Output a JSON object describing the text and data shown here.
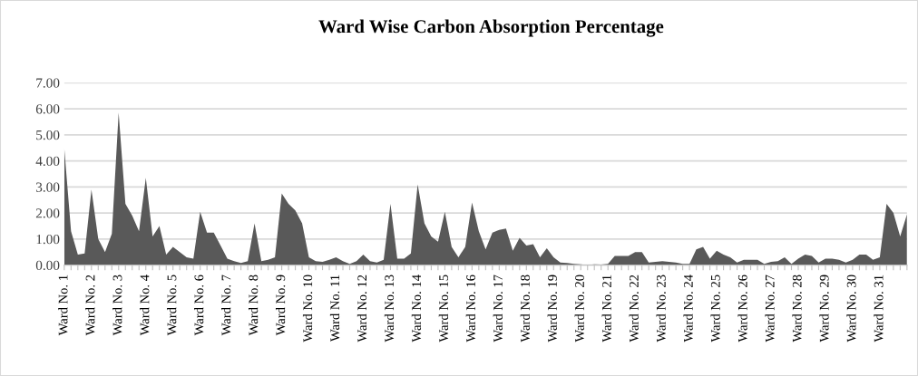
{
  "chart_data": {
    "type": "area",
    "title": "Ward Wise Carbon Absorption Percentage",
    "categories": [
      "Ward No. 1",
      null,
      null,
      null,
      "Ward No. 2",
      null,
      null,
      null,
      "Ward No. 3",
      null,
      null,
      null,
      "Ward No. 4",
      null,
      null,
      null,
      "Ward No. 5",
      null,
      null,
      null,
      "Ward No. 6",
      null,
      null,
      null,
      "Ward No. 7",
      null,
      null,
      null,
      "Ward No. 8",
      null,
      null,
      null,
      "Ward No. 9",
      null,
      null,
      null,
      "Ward No. 10",
      null,
      null,
      null,
      "Ward No. 11",
      null,
      null,
      null,
      "Ward No. 12",
      null,
      null,
      null,
      "Ward No. 13",
      null,
      null,
      null,
      "Ward No. 14",
      null,
      null,
      null,
      "Ward No. 15",
      null,
      null,
      null,
      "Ward No. 16",
      null,
      null,
      null,
      "Ward No. 17",
      null,
      null,
      null,
      "Ward No. 18",
      null,
      null,
      null,
      "Ward No. 19",
      null,
      null,
      null,
      "Ward No. 20",
      null,
      null,
      null,
      "Ward No. 21",
      null,
      null,
      null,
      "Ward No. 22",
      null,
      null,
      null,
      "Ward No. 23",
      null,
      null,
      null,
      "Ward No. 24",
      null,
      null,
      null,
      "Ward No. 25",
      null,
      null,
      null,
      "Ward No. 26",
      null,
      null,
      null,
      "Ward No. 27",
      null,
      null,
      null,
      "Ward No. 28",
      null,
      null,
      null,
      "Ward No. 29",
      null,
      null,
      null,
      "Ward No. 30",
      null,
      null,
      null,
      "Ward No. 31",
      null,
      null,
      null,
      null
    ],
    "series": [
      {
        "color": "#595959",
        "values": [
          4.5,
          1.3,
          0.4,
          0.45,
          2.9,
          1.0,
          0.5,
          1.2,
          5.85,
          2.35,
          1.9,
          1.3,
          3.35,
          1.1,
          1.5,
          0.4,
          0.7,
          0.5,
          0.3,
          0.25,
          2.05,
          1.25,
          1.25,
          0.75,
          0.25,
          0.15,
          0.08,
          0.15,
          1.6,
          0.15,
          0.2,
          0.3,
          2.75,
          2.35,
          2.1,
          1.6,
          0.3,
          0.15,
          0.12,
          0.2,
          0.3,
          0.15,
          0.05,
          0.15,
          0.4,
          0.15,
          0.1,
          0.2,
          2.35,
          0.25,
          0.25,
          0.45,
          3.1,
          1.6,
          1.1,
          0.9,
          2.05,
          0.7,
          0.3,
          0.7,
          2.4,
          1.3,
          0.6,
          1.25,
          1.35,
          1.4,
          0.55,
          1.05,
          0.75,
          0.8,
          0.3,
          0.65,
          0.3,
          0.1,
          0.08,
          0.05,
          0.03,
          0.0,
          0.03,
          0.02,
          0.05,
          0.35,
          0.35,
          0.35,
          0.5,
          0.5,
          0.1,
          0.12,
          0.15,
          0.12,
          0.1,
          0.05,
          0.05,
          0.6,
          0.7,
          0.25,
          0.55,
          0.4,
          0.3,
          0.1,
          0.2,
          0.2,
          0.2,
          0.05,
          0.12,
          0.15,
          0.3,
          0.05,
          0.25,
          0.4,
          0.35,
          0.1,
          0.25,
          0.25,
          0.2,
          0.1,
          0.2,
          0.4,
          0.4,
          0.2,
          0.3,
          2.35,
          2.0,
          1.1,
          1.95
        ]
      }
    ],
    "ylim": [
      0,
      7
    ],
    "yticks": [
      {
        "value": 0,
        "label": "0.00"
      },
      {
        "value": 1,
        "label": "1.00"
      },
      {
        "value": 2,
        "label": "2.00"
      },
      {
        "value": 3,
        "label": "3.00"
      },
      {
        "value": 4,
        "label": "4.00"
      },
      {
        "value": 5,
        "label": "5.00"
      },
      {
        "value": 6,
        "label": "6.00"
      },
      {
        "value": 7,
        "label": "7.00"
      }
    ],
    "grid": "y"
  }
}
